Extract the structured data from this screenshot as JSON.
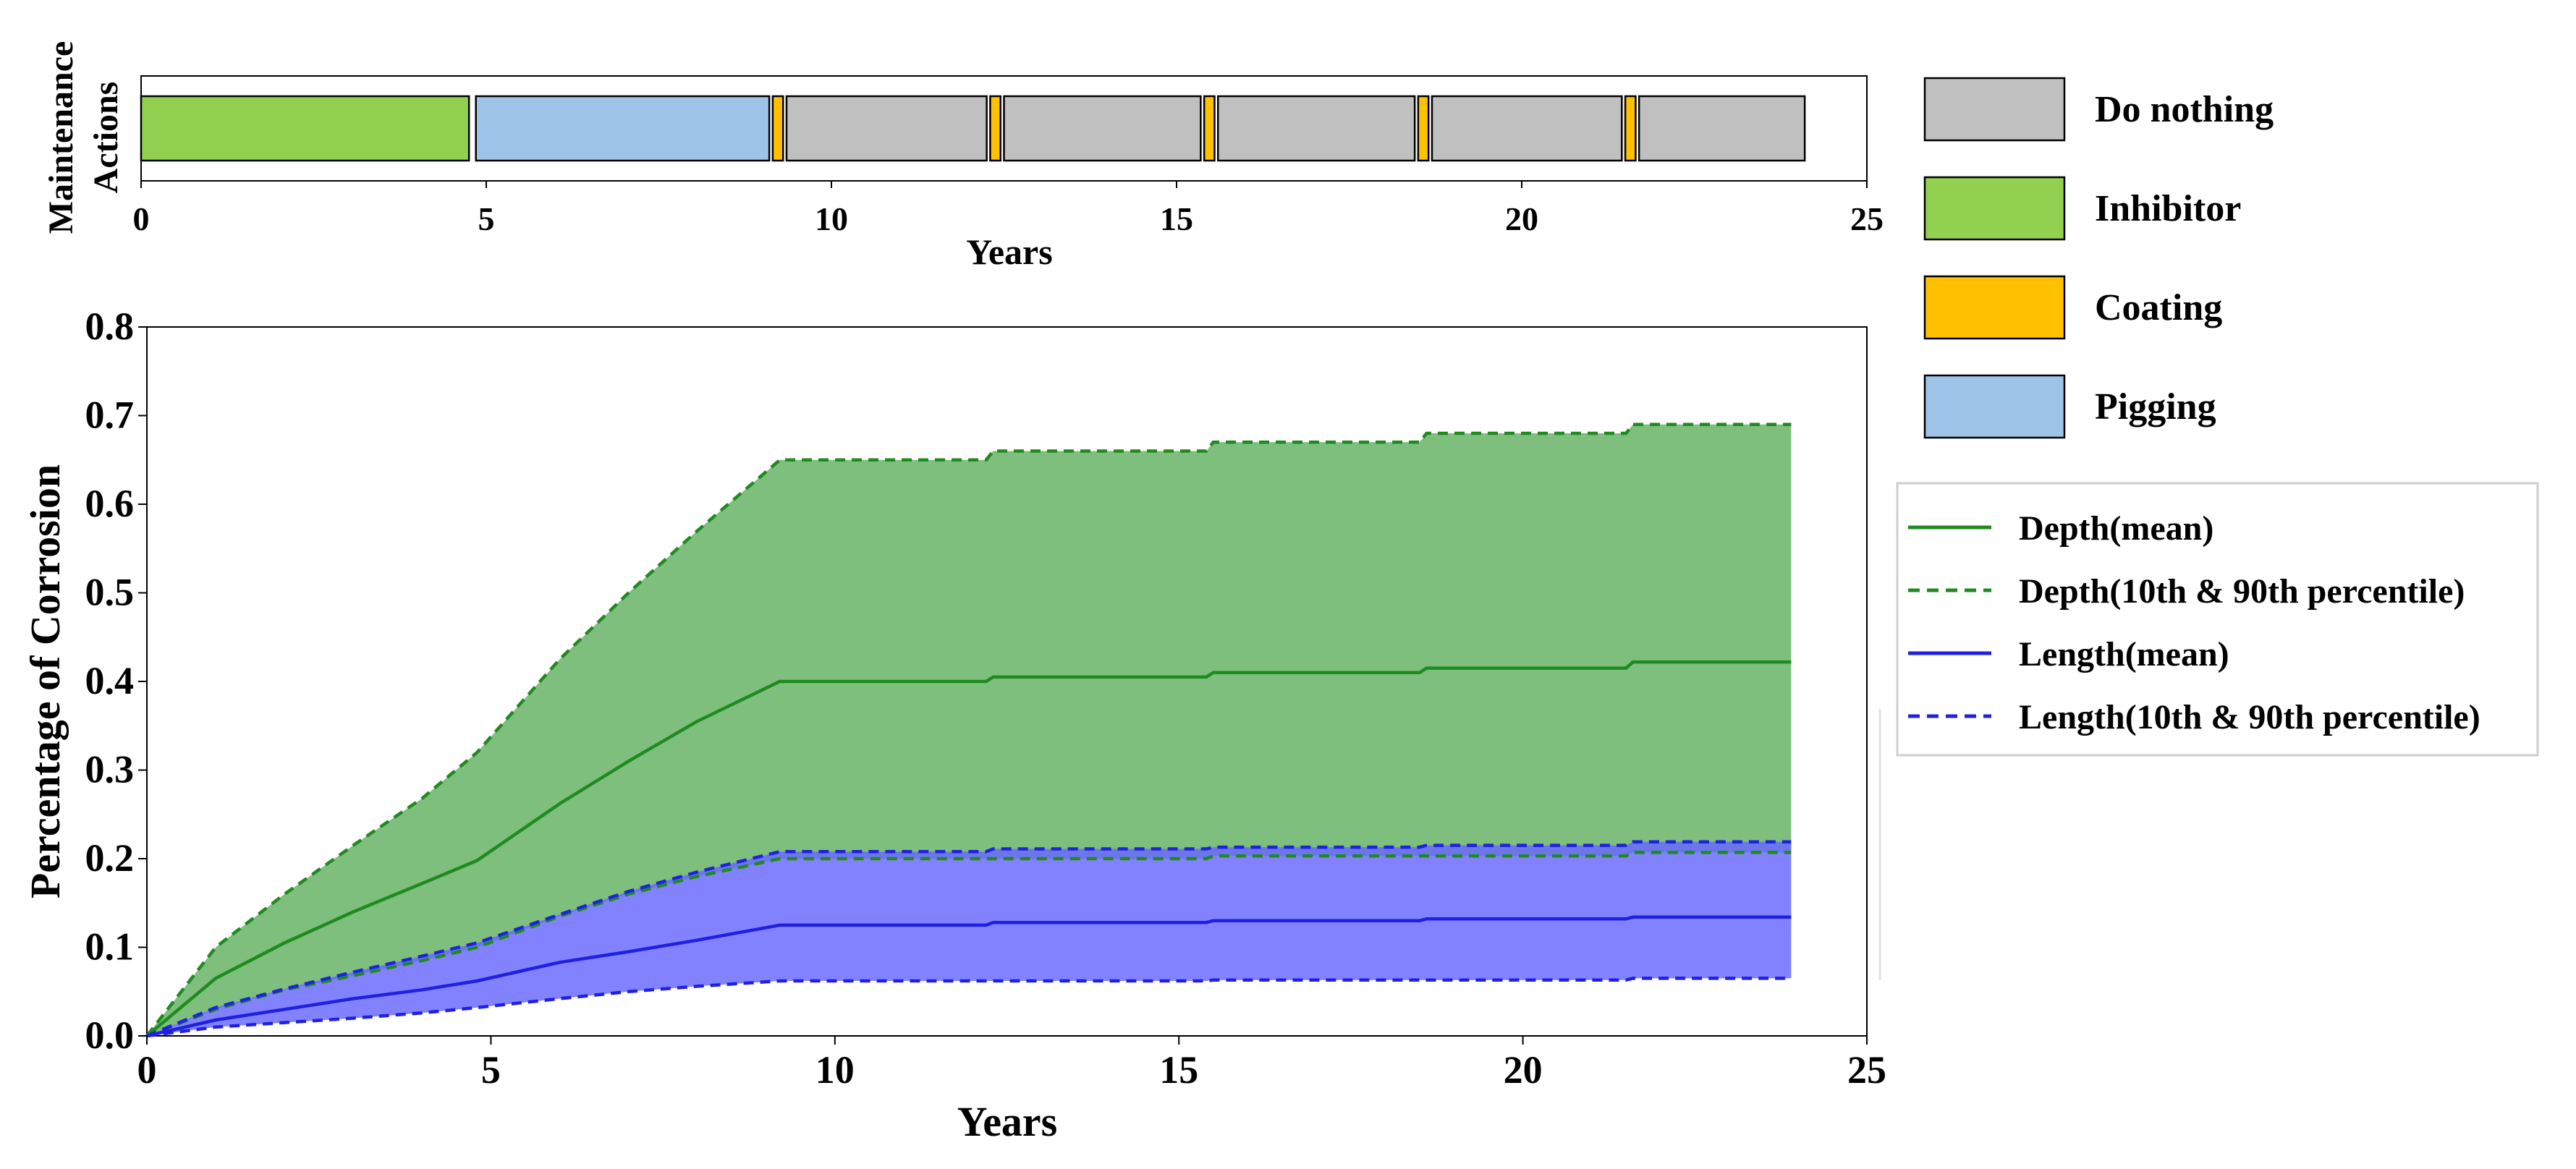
{
  "colors": {
    "do_nothing": "#c0c0c0",
    "inhibitor": "#92d050",
    "coating": "#ffc000",
    "pigging": "#9dc3e6",
    "depth_fill": "#4ca64c",
    "depth_line": "#1f8b1f",
    "length_fill": "#6666ff",
    "length_line": "#2020e0"
  },
  "maintenance": {
    "ylabel_line1": "Maintenance",
    "ylabel_line2": "Actions",
    "xlabel": "Years",
    "xlim": [
      0,
      25
    ],
    "xticks": [
      0,
      5,
      10,
      15,
      20,
      25
    ],
    "actions": [
      {
        "type": "inhibitor",
        "start": 0.0,
        "end": 4.75
      },
      {
        "type": "pigging",
        "start": 4.85,
        "end": 9.1
      },
      {
        "type": "coating",
        "start": 9.15,
        "end": 9.3
      },
      {
        "type": "do_nothing",
        "start": 9.35,
        "end": 12.25
      },
      {
        "type": "coating",
        "start": 12.3,
        "end": 12.45
      },
      {
        "type": "do_nothing",
        "start": 12.5,
        "end": 15.35
      },
      {
        "type": "coating",
        "start": 15.4,
        "end": 15.55
      },
      {
        "type": "do_nothing",
        "start": 15.6,
        "end": 18.45
      },
      {
        "type": "coating",
        "start": 18.5,
        "end": 18.65
      },
      {
        "type": "do_nothing",
        "start": 18.7,
        "end": 21.45
      },
      {
        "type": "coating",
        "start": 21.5,
        "end": 21.65
      },
      {
        "type": "do_nothing",
        "start": 21.7,
        "end": 24.1
      }
    ]
  },
  "action_legend": [
    {
      "key": "do_nothing",
      "label": "Do nothing"
    },
    {
      "key": "inhibitor",
      "label": "Inhibitor"
    },
    {
      "key": "coating",
      "label": "Coating"
    },
    {
      "key": "pigging",
      "label": "Pigging"
    }
  ],
  "chart_data": {
    "type": "area",
    "title": "",
    "xlabel": "Years",
    "ylabel": "Percentage of Corrosion",
    "xlim": [
      0,
      25
    ],
    "ylim": [
      0,
      0.8
    ],
    "xticks": [
      0,
      5,
      10,
      15,
      20,
      25
    ],
    "yticks": [
      0.0,
      0.1,
      0.2,
      0.3,
      0.4,
      0.5,
      0.6,
      0.7,
      0.8
    ],
    "ytick_labels": [
      "0.0",
      "0.1",
      "0.2",
      "0.3",
      "0.4",
      "0.5",
      "0.6",
      "0.7",
      "0.8"
    ],
    "x": [
      0,
      1,
      2,
      3,
      4,
      4.8,
      6,
      7,
      8,
      9.2,
      12.2,
      12.3,
      15.4,
      15.5,
      18.5,
      18.6,
      21.5,
      21.6,
      23.9
    ],
    "series": [
      {
        "name": "Depth(mean)",
        "values": [
          0,
          0.065,
          0.105,
          0.14,
          0.172,
          0.198,
          0.262,
          0.31,
          0.355,
          0.4,
          0.4,
          0.405,
          0.405,
          0.41,
          0.41,
          0.415,
          0.415,
          0.422,
          0.422
        ]
      },
      {
        "name": "Depth(10th & 90th percentile)",
        "lower": [
          0,
          0.03,
          0.052,
          0.068,
          0.085,
          0.1,
          0.135,
          0.16,
          0.18,
          0.2,
          0.2,
          0.2,
          0.2,
          0.203,
          0.203,
          0.203,
          0.203,
          0.207,
          0.207
        ],
        "upper": [
          0,
          0.1,
          0.16,
          0.215,
          0.268,
          0.32,
          0.425,
          0.5,
          0.57,
          0.65,
          0.65,
          0.66,
          0.66,
          0.67,
          0.67,
          0.68,
          0.68,
          0.69,
          0.69
        ]
      },
      {
        "name": "Length(mean)",
        "values": [
          0,
          0.018,
          0.03,
          0.042,
          0.052,
          0.062,
          0.083,
          0.095,
          0.108,
          0.125,
          0.125,
          0.128,
          0.128,
          0.13,
          0.13,
          0.132,
          0.132,
          0.134,
          0.134
        ]
      },
      {
        "name": "Length(10th & 90th percentile)",
        "lower": [
          0,
          0.01,
          0.015,
          0.02,
          0.026,
          0.032,
          0.042,
          0.05,
          0.056,
          0.062,
          0.062,
          0.062,
          0.062,
          0.063,
          0.063,
          0.063,
          0.063,
          0.065,
          0.065
        ],
        "upper": [
          0,
          0.032,
          0.053,
          0.072,
          0.09,
          0.105,
          0.137,
          0.163,
          0.185,
          0.208,
          0.208,
          0.211,
          0.211,
          0.213,
          0.213,
          0.215,
          0.215,
          0.219,
          0.219
        ]
      }
    ],
    "legend_location": "right",
    "grid": false
  }
}
